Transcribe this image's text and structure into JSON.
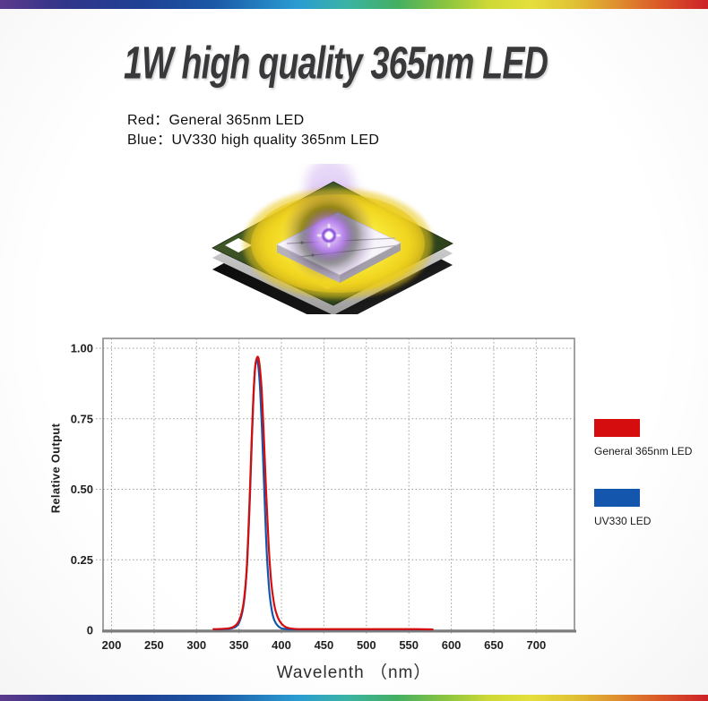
{
  "header": {
    "title": "1W high quality 365nm LED",
    "subtitle_red": "Red：General 365nm LED",
    "subtitle_blue": "Blue：UV330 high quality 365nm LED"
  },
  "chart_data": {
    "type": "line",
    "title": "",
    "xlabel": "Wavelenth （nm）",
    "ylabel": "Relative Output",
    "xlim": [
      190,
      745
    ],
    "ylim": [
      0,
      1.035
    ],
    "x_ticks": [
      200,
      250,
      300,
      350,
      400,
      450,
      500,
      550,
      600,
      650,
      700
    ],
    "y_ticks": [
      {
        "value": 1.0,
        "label": "1.00"
      },
      {
        "value": 0.75,
        "label": "0.75"
      },
      {
        "value": 0.5,
        "label": "0.50"
      },
      {
        "value": 0.25,
        "label": "0.25"
      },
      {
        "value": 0,
        "label": "0"
      }
    ],
    "grid": "dotted",
    "legend_position": "right",
    "peak_wavelength_nm": 365,
    "series": [
      {
        "name": "General 365nm LED",
        "color": "#d60d0e",
        "points": [
          [
            320,
            0.004
          ],
          [
            330,
            0.005
          ],
          [
            338,
            0.007
          ],
          [
            344,
            0.013
          ],
          [
            349,
            0.028
          ],
          [
            353,
            0.06
          ],
          [
            356,
            0.11
          ],
          [
            359,
            0.21
          ],
          [
            362,
            0.42
          ],
          [
            365,
            0.68
          ],
          [
            367,
            0.83
          ],
          [
            369,
            0.93
          ],
          [
            371,
            0.965
          ],
          [
            373,
            0.965
          ],
          [
            375,
            0.92
          ],
          [
            377,
            0.84
          ],
          [
            379,
            0.71
          ],
          [
            382,
            0.49
          ],
          [
            385,
            0.3
          ],
          [
            388,
            0.17
          ],
          [
            391,
            0.1
          ],
          [
            394,
            0.06
          ],
          [
            398,
            0.032
          ],
          [
            403,
            0.015
          ],
          [
            408,
            0.008
          ],
          [
            415,
            0.005
          ],
          [
            425,
            0.004
          ],
          [
            445,
            0.004
          ],
          [
            470,
            0.004
          ],
          [
            500,
            0.004
          ],
          [
            530,
            0.004
          ],
          [
            560,
            0.004
          ],
          [
            578,
            0.003
          ]
        ]
      },
      {
        "name": "UV330 LED",
        "color": "#1455ad",
        "points": [
          [
            322,
            0.003
          ],
          [
            332,
            0.004
          ],
          [
            340,
            0.006
          ],
          [
            346,
            0.012
          ],
          [
            350,
            0.026
          ],
          [
            354,
            0.065
          ],
          [
            357,
            0.13
          ],
          [
            360,
            0.26
          ],
          [
            363,
            0.48
          ],
          [
            365,
            0.66
          ],
          [
            367,
            0.82
          ],
          [
            369,
            0.93
          ],
          [
            371,
            0.96
          ],
          [
            373,
            0.93
          ],
          [
            375,
            0.85
          ],
          [
            377,
            0.72
          ],
          [
            379,
            0.56
          ],
          [
            381,
            0.4
          ],
          [
            383,
            0.26
          ],
          [
            386,
            0.13
          ],
          [
            389,
            0.065
          ],
          [
            392,
            0.033
          ],
          [
            396,
            0.015
          ],
          [
            400,
            0.007
          ],
          [
            406,
            0.004
          ],
          [
            414,
            0.003
          ],
          [
            430,
            0.003
          ],
          [
            460,
            0.003
          ],
          [
            495,
            0.003
          ],
          [
            530,
            0.003
          ],
          [
            560,
            0.003
          ],
          [
            577,
            0.003
          ]
        ]
      }
    ]
  }
}
